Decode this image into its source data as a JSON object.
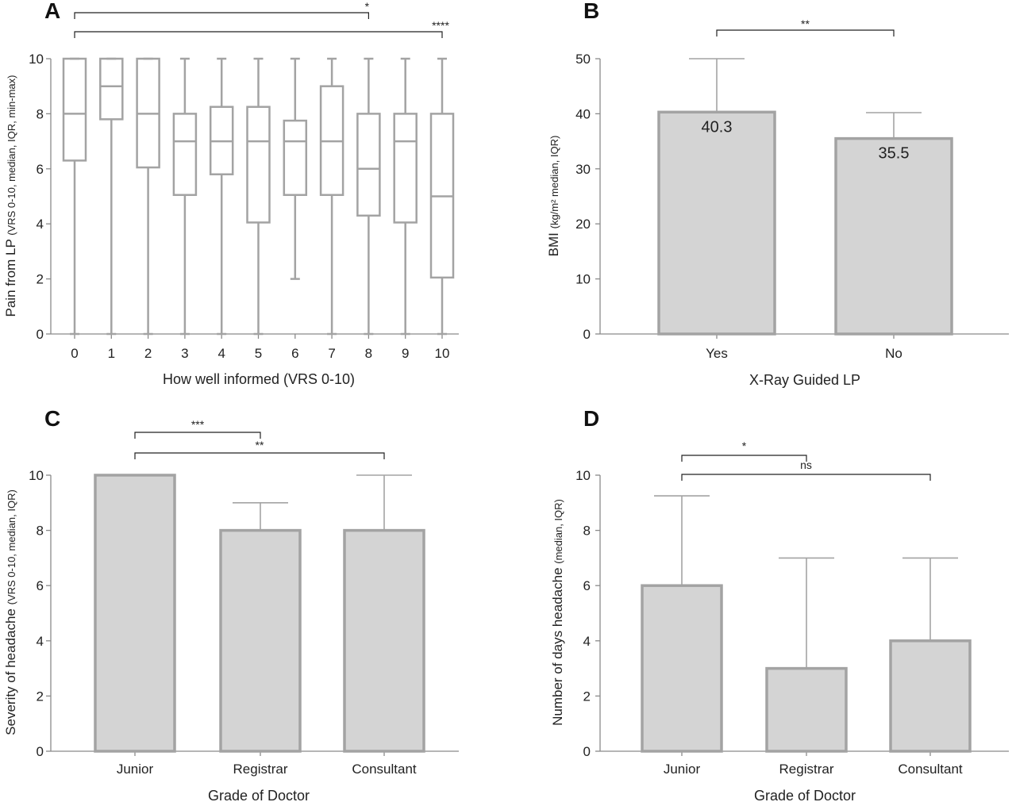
{
  "chart_data": [
    {
      "panel": "A",
      "type": "box",
      "xlabel": "How well informed (VRS 0-10)",
      "ylabel_main": "Pain from LP",
      "ylabel_sub": "(VRS 0-10, median, IQR, min-max)",
      "ylim": [
        0,
        10
      ],
      "yticks": [
        0,
        2,
        4,
        6,
        8,
        10
      ],
      "categories": [
        "0",
        "1",
        "2",
        "3",
        "4",
        "5",
        "6",
        "7",
        "8",
        "9",
        "10"
      ],
      "boxes": [
        {
          "min": 0,
          "q1": 6.3,
          "median": 8,
          "q3": 10,
          "max": 10
        },
        {
          "min": 0,
          "q1": 7.8,
          "median": 9,
          "q3": 10,
          "max": 10
        },
        {
          "min": 0,
          "q1": 6.05,
          "median": 8,
          "q3": 10,
          "max": 10
        },
        {
          "min": 0,
          "q1": 5.05,
          "median": 7,
          "q3": 8,
          "max": 10
        },
        {
          "min": 0,
          "q1": 5.8,
          "median": 7,
          "q3": 8.25,
          "max": 10
        },
        {
          "min": 0,
          "q1": 4.05,
          "median": 7,
          "q3": 8.25,
          "max": 10
        },
        {
          "min": 2,
          "q1": 5.05,
          "median": 7,
          "q3": 7.75,
          "max": 10
        },
        {
          "min": 0,
          "q1": 5.05,
          "median": 7,
          "q3": 9,
          "max": 10
        },
        {
          "min": 0,
          "q1": 4.3,
          "median": 6,
          "q3": 8,
          "max": 10
        },
        {
          "min": 0,
          "q1": 4.05,
          "median": 7,
          "q3": 8,
          "max": 10
        },
        {
          "min": 0,
          "q1": 2.05,
          "median": 5,
          "q3": 8,
          "max": 10
        }
      ],
      "significance": [
        {
          "from": "0",
          "to": "8",
          "label": "*"
        },
        {
          "from": "0",
          "to": "10",
          "label": "****"
        }
      ]
    },
    {
      "panel": "B",
      "type": "bar",
      "xlabel": "X-Ray Guided LP",
      "ylabel_main": "BMI",
      "ylabel_sub": "(kg/m² median, IQR)",
      "ylim": [
        0,
        50
      ],
      "yticks": [
        0,
        10,
        20,
        30,
        40,
        50
      ],
      "categories": [
        "Yes",
        "No"
      ],
      "values": [
        40.3,
        35.5
      ],
      "error_upper": [
        50,
        40.2
      ],
      "value_labels": [
        "40.3",
        "35.5"
      ],
      "significance": [
        {
          "from": "Yes",
          "to": "No",
          "label": "**"
        }
      ]
    },
    {
      "panel": "C",
      "type": "bar",
      "xlabel": "Grade of Doctor",
      "ylabel_main": "Severity of headache",
      "ylabel_sub": "(VRS 0-10, median, IQR)",
      "ylim": [
        0,
        10
      ],
      "yticks": [
        0,
        2,
        4,
        6,
        8,
        10
      ],
      "categories": [
        "Junior",
        "Registrar",
        "Consultant"
      ],
      "values": [
        10,
        8,
        8
      ],
      "error_upper": [
        10,
        9,
        10
      ],
      "significance": [
        {
          "from": "Junior",
          "to": "Registrar",
          "label": "***"
        },
        {
          "from": "Junior",
          "to": "Consultant",
          "label": "**"
        }
      ]
    },
    {
      "panel": "D",
      "type": "bar",
      "xlabel": "Grade of Doctor",
      "ylabel_main": "Number of days headache",
      "ylabel_sub": "(median, IQR)",
      "ylim": [
        0,
        10
      ],
      "yticks": [
        0,
        2,
        4,
        6,
        8,
        10
      ],
      "categories": [
        "Junior",
        "Registrar",
        "Consultant"
      ],
      "values": [
        6,
        3,
        4
      ],
      "error_upper": [
        9.25,
        7,
        7
      ],
      "significance": [
        {
          "from": "Junior",
          "to": "Registrar",
          "label": "*"
        },
        {
          "from": "Junior",
          "to": "Consultant",
          "label": "ns"
        }
      ]
    }
  ]
}
